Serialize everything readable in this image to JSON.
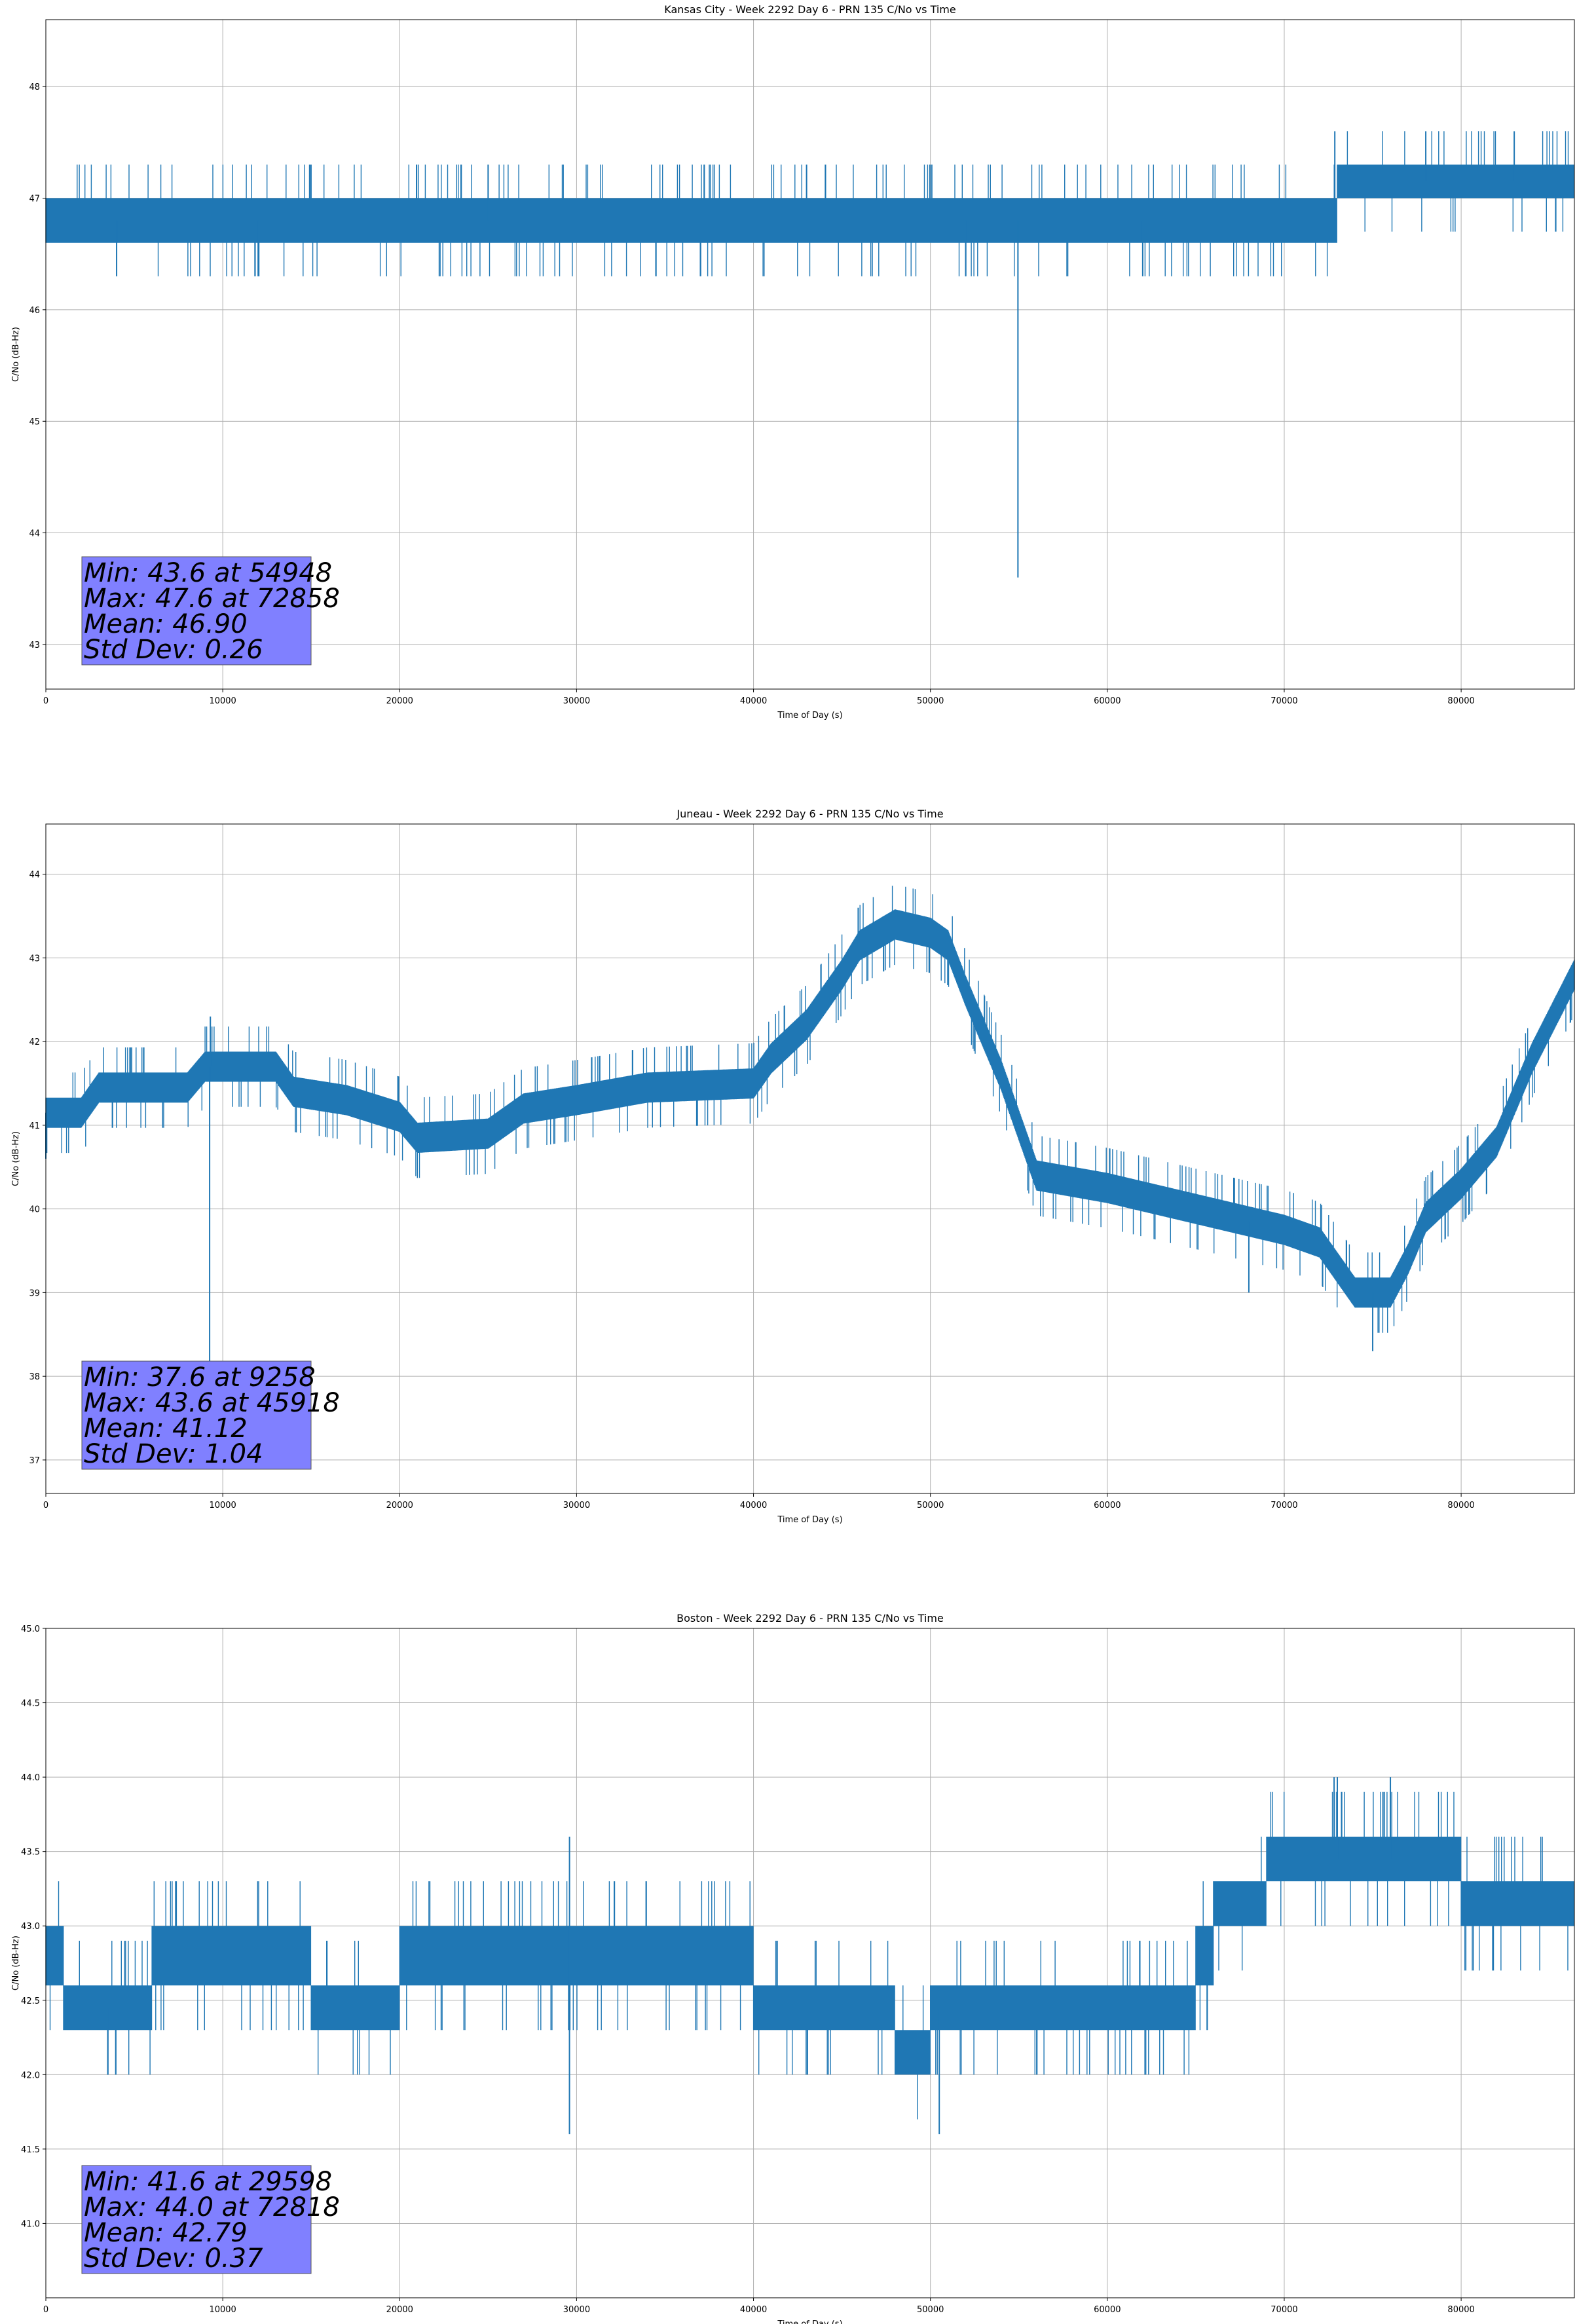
{
  "colors": {
    "series": "#1f77b4",
    "grid": "#b0b0b0",
    "stats_box": "#8080ff"
  },
  "chart_data": [
    {
      "type": "line",
      "title": "Kansas City - Week 2292 Day 6 - PRN 135 C/No vs Time",
      "xlabel": "Time of Day (s)",
      "ylabel": "C/No (dB-Hz)",
      "xlim": [
        0,
        86400
      ],
      "ylim": [
        42.6,
        48.6
      ],
      "xticks": [
        "0",
        "10000",
        "20000",
        "30000",
        "40000",
        "50000",
        "60000",
        "70000",
        "80000"
      ],
      "yticks": [
        "43",
        "44",
        "45",
        "46",
        "47",
        "48"
      ],
      "grid": true,
      "series": [
        {
          "bands": [
            [
              0,
              2000,
              46.6,
              47.0
            ],
            [
              2000,
              8000,
              46.6,
              47.0
            ],
            [
              8000,
              15000,
              46.6,
              47.0
            ],
            [
              15000,
              30000,
              46.6,
              47.0
            ],
            [
              30000,
              40000,
              46.6,
              47.0
            ],
            [
              40000,
              50000,
              46.6,
              47.0
            ],
            [
              50000,
              60000,
              46.6,
              47.0
            ],
            [
              60000,
              70000,
              46.6,
              47.0
            ],
            [
              70000,
              73000,
              46.6,
              47.0
            ],
            [
              73000,
              86400,
              47.0,
              47.3
            ]
          ],
          "points": [
            [
              54948,
              43.6
            ],
            [
              72858,
              47.6
            ],
            [
              4000,
              46.3
            ],
            [
              12000,
              46.3
            ],
            [
              25000,
              47.3
            ],
            [
              43000,
              47.3
            ],
            [
              52000,
              46.3
            ],
            [
              62000,
              46.3
            ],
            [
              78000,
              47.6
            ],
            [
              83000,
              47.6
            ],
            [
              500,
              46.8
            ]
          ]
        }
      ],
      "stats": [
        "Min: 43.6 at 54948",
        "Max: 47.6 at 72858",
        "Mean: 46.90",
        "Std Dev: 0.26"
      ]
    },
    {
      "type": "line",
      "title": "Juneau - Week 2292 Day 6 - PRN 135 C/No vs Time",
      "xlabel": "Time of Day (s)",
      "ylabel": "C/No (dB-Hz)",
      "xlim": [
        0,
        86400
      ],
      "ylim": [
        36.6,
        44.6
      ],
      "xticks": [
        "0",
        "10000",
        "20000",
        "30000",
        "40000",
        "50000",
        "60000",
        "70000",
        "80000"
      ],
      "yticks": [
        "37",
        "38",
        "39",
        "40",
        "41",
        "42",
        "43",
        "44"
      ],
      "grid": true,
      "series": [
        {
          "profile": [
            [
              0,
              41.15
            ],
            [
              2000,
              41.15
            ],
            [
              3000,
              41.45
            ],
            [
              8000,
              41.45
            ],
            [
              9000,
              41.7
            ],
            [
              13000,
              41.7
            ],
            [
              14000,
              41.4
            ],
            [
              17000,
              41.3
            ],
            [
              20000,
              41.1
            ],
            [
              21000,
              40.85
            ],
            [
              25000,
              40.9
            ],
            [
              27000,
              41.2
            ],
            [
              30000,
              41.3
            ],
            [
              34000,
              41.45
            ],
            [
              40000,
              41.5
            ],
            [
              41000,
              41.8
            ],
            [
              43000,
              42.2
            ],
            [
              45000,
              42.8
            ],
            [
              46000,
              43.15
            ],
            [
              48000,
              43.4
            ],
            [
              50000,
              43.3
            ],
            [
              51000,
              43.15
            ],
            [
              52000,
              42.6
            ],
            [
              53000,
              42.1
            ],
            [
              54000,
              41.6
            ],
            [
              55000,
              41.0
            ],
            [
              56000,
              40.4
            ],
            [
              60000,
              40.25
            ],
            [
              65000,
              40.0
            ],
            [
              70000,
              39.75
            ],
            [
              72000,
              39.6
            ],
            [
              74000,
              39.0
            ],
            [
              76000,
              39.0
            ],
            [
              77000,
              39.4
            ],
            [
              78000,
              39.9
            ],
            [
              80000,
              40.3
            ],
            [
              82000,
              40.8
            ],
            [
              84000,
              41.8
            ],
            [
              86400,
              42.8
            ]
          ],
          "halfwidth": 0.18,
          "points": [
            [
              9258,
              37.6
            ],
            [
              9300,
              42.3
            ],
            [
              45918,
              43.6
            ],
            [
              0,
              40.6
            ],
            [
              75000,
              38.3
            ],
            [
              68000,
              39.0
            ]
          ]
        }
      ],
      "stats": [
        "Min: 37.6 at 9258",
        "Max: 43.6 at 45918",
        "Mean: 41.12",
        "Std Dev: 1.04"
      ]
    },
    {
      "type": "line",
      "title": "Boston - Week 2292 Day 6 - PRN 135 C/No vs Time",
      "xlabel": "Time of Day (s)",
      "ylabel": "C/No (dB-Hz)",
      "xlim": [
        0,
        86400
      ],
      "ylim": [
        40.5,
        45.0
      ],
      "xticks": [
        "0",
        "10000",
        "20000",
        "30000",
        "40000",
        "50000",
        "60000",
        "70000",
        "80000"
      ],
      "yticks": [
        "41.0",
        "41.5",
        "42.0",
        "42.5",
        "43.0",
        "43.5",
        "44.0",
        "44.5",
        "45.0"
      ],
      "grid": true,
      "series": [
        {
          "bands": [
            [
              0,
              1000,
              42.6,
              43.0
            ],
            [
              1000,
              6000,
              42.3,
              42.6
            ],
            [
              6000,
              15000,
              42.6,
              43.0
            ],
            [
              15000,
              20000,
              42.3,
              42.6
            ],
            [
              20000,
              40000,
              42.6,
              43.0
            ],
            [
              40000,
              48000,
              42.3,
              42.6
            ],
            [
              48000,
              50000,
              42.0,
              42.3
            ],
            [
              50000,
              65000,
              42.3,
              42.6
            ],
            [
              65000,
              66000,
              42.6,
              43.0
            ],
            [
              66000,
              69000,
              43.0,
              43.3
            ],
            [
              69000,
              80000,
              43.3,
              43.6
            ],
            [
              80000,
              86400,
              43.0,
              43.3
            ]
          ],
          "points": [
            [
              29598,
              41.6
            ],
            [
              29600,
              43.6
            ],
            [
              72818,
              44.0
            ],
            [
              50500,
              41.6
            ],
            [
              3500,
              42.0
            ],
            [
              76000,
              44.0
            ],
            [
              73000,
              44.0
            ]
          ]
        }
      ],
      "stats": [
        "Min: 41.6 at 29598",
        "Max: 44.0 at 72818",
        "Mean: 42.79",
        "Std Dev: 0.37"
      ]
    }
  ]
}
